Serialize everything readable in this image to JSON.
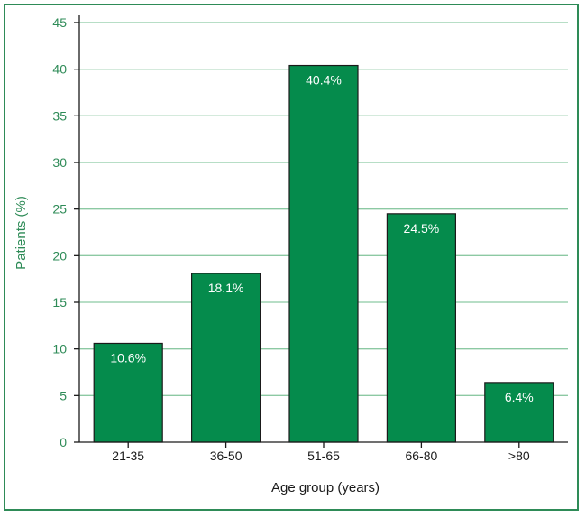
{
  "chart_data": {
    "type": "bar",
    "categories": [
      "21-35",
      "36-50",
      "51-65",
      "66-80",
      ">80"
    ],
    "values": [
      10.6,
      18.1,
      40.4,
      24.5,
      6.4
    ],
    "data_labels": [
      "10.6%",
      "18.1%",
      "40.4%",
      "24.5%",
      "6.4%"
    ],
    "xlabel": "Age group (years)",
    "ylabel": "Patients (%)",
    "ylim": [
      0,
      45
    ],
    "yticks": [
      0,
      5,
      10,
      15,
      20,
      25,
      30,
      35,
      40,
      45
    ],
    "grid": true,
    "colors": {
      "bar": "#058b4c",
      "bar_border": "#1a1a1a",
      "grid": "#8cc9a3",
      "axis": "#1a1a1a",
      "frame": "#2e8b57",
      "tick_text": "#2e8b57"
    }
  }
}
